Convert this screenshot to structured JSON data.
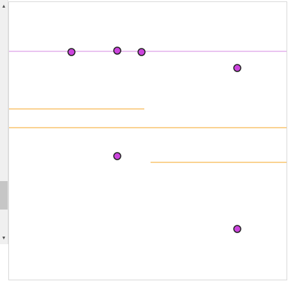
{
  "scrollbar": {
    "up_arrow": "▲",
    "down_arrow": "▼"
  },
  "colors": {
    "point_fill": "#cc44dd",
    "point_stroke": "#222222",
    "violet_line": "#dda0e8",
    "orange_line": "#f5a623",
    "frame_border": "#d9d9d9",
    "scrollbar_track": "#f0f0f0",
    "scrollbar_thumb": "#c6c6c6"
  },
  "icons": {
    "scroll_up": "triangle-up-icon",
    "scroll_down": "triangle-down-icon"
  }
}
